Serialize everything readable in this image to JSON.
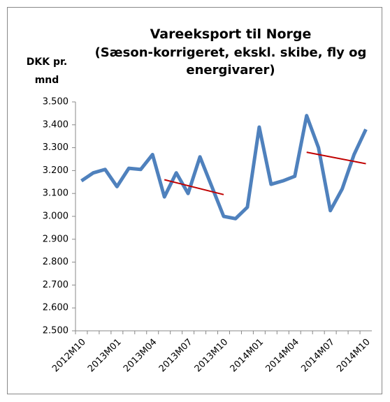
{
  "chart_data": {
    "type": "line",
    "title": "Vareeksport til Norge",
    "subtitle": "(Sæson-korrigeret, ekskl. skibe, fly og energivarer)",
    "y_label": "DKK pr. mnd",
    "categories": [
      "2012M10",
      null,
      null,
      "2013M01",
      null,
      null,
      "2013M04",
      null,
      null,
      "2013M07",
      null,
      null,
      "2013M10",
      null,
      null,
      "2014M01",
      null,
      null,
      "2014M04",
      null,
      null,
      "2014M07",
      null,
      null,
      "2014M10"
    ],
    "series": [
      {
        "color": "#4f81bd",
        "values": [
          3155,
          3190,
          3205,
          3130,
          3210,
          3205,
          3270,
          3085,
          3190,
          3100,
          3260,
          3130,
          3000,
          2990,
          3040,
          3390,
          3140,
          3155,
          3175,
          3440,
          3300,
          3025,
          3120,
          3270,
          3380
        ]
      }
    ],
    "trend_lines": [
      {
        "color": "#c00000",
        "from": 7,
        "to": 12,
        "values": [
          3160,
          3095
        ]
      },
      {
        "color": "#c00000",
        "from": 19,
        "to": 24,
        "values": [
          3280,
          3230
        ]
      }
    ],
    "ylim": [
      2500,
      3500
    ],
    "yticks": [
      {
        "value": 2500,
        "label": "2.500"
      },
      {
        "value": 2600,
        "label": "2.600"
      },
      {
        "value": 2700,
        "label": "2.700"
      },
      {
        "value": 2800,
        "label": "2.800"
      },
      {
        "value": 2900,
        "label": "2.900"
      },
      {
        "value": 3000,
        "label": "3.000"
      },
      {
        "value": 3100,
        "label": "3.100"
      },
      {
        "value": 3200,
        "label": "3.200"
      },
      {
        "value": 3300,
        "label": "3.300"
      },
      {
        "value": 3400,
        "label": "3.400"
      },
      {
        "value": 3500,
        "label": "3.500"
      }
    ]
  }
}
